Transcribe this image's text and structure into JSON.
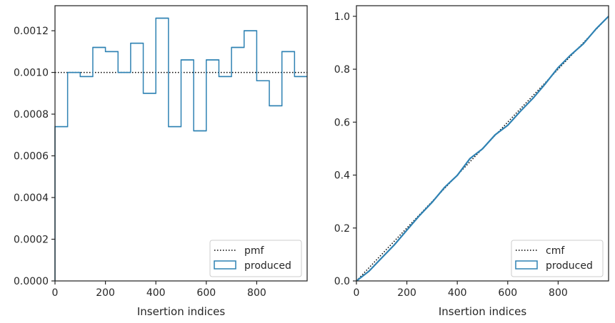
{
  "colors": {
    "series": "#2f82b3",
    "reference": "#000000",
    "frame": "#262626"
  },
  "chart_data": [
    {
      "type": "histogram-step",
      "xlabel": "Insertion indices",
      "ylabel": "",
      "xlim": [
        0,
        1000
      ],
      "ylim": [
        0,
        0.00132
      ],
      "xticks": [
        "0",
        "200",
        "400",
        "600",
        "800"
      ],
      "yticks": [
        "0.0000",
        "0.0002",
        "0.0004",
        "0.0006",
        "0.0008",
        "0.0010",
        "0.0012"
      ],
      "bin_edges": [
        0,
        50,
        100,
        150,
        200,
        250,
        300,
        350,
        400,
        450,
        500,
        550,
        600,
        650,
        700,
        750,
        800,
        850,
        900,
        950,
        1000
      ],
      "produced_values": [
        0.00074,
        0.001,
        0.00098,
        0.00112,
        0.0011,
        0.001,
        0.00114,
        0.0009,
        0.00126,
        0.00074,
        0.00106,
        0.00072,
        0.00106,
        0.00098,
        0.00112,
        0.0012,
        0.00096,
        0.00084,
        0.0011,
        0.00098
      ],
      "reference_value": 0.001,
      "legend": {
        "position": "lower-right",
        "entries": [
          "pmf",
          "produced"
        ]
      }
    },
    {
      "type": "line",
      "xlabel": "Insertion indices",
      "ylabel": "",
      "xlim": [
        0,
        1000
      ],
      "ylim": [
        0,
        1.04
      ],
      "xticks": [
        "0",
        "200",
        "400",
        "600",
        "800"
      ],
      "yticks": [
        "0.0",
        "0.2",
        "0.4",
        "0.6",
        "0.8",
        "1.0"
      ],
      "produced_points": {
        "x": [
          0,
          50,
          100,
          150,
          200,
          250,
          300,
          350,
          400,
          450,
          500,
          550,
          600,
          650,
          700,
          750,
          800,
          850,
          900,
          950,
          1000
        ],
        "y": [
          0.0,
          0.037,
          0.087,
          0.136,
          0.192,
          0.247,
          0.297,
          0.354,
          0.399,
          0.462,
          0.499,
          0.552,
          0.588,
          0.641,
          0.69,
          0.746,
          0.806,
          0.854,
          0.896,
          0.952,
          1.0
        ]
      },
      "reference_line": {
        "x": [
          0,
          1000
        ],
        "y": [
          0,
          1.0
        ]
      },
      "legend": {
        "position": "lower-right",
        "entries": [
          "cmf",
          "produced"
        ]
      }
    }
  ]
}
